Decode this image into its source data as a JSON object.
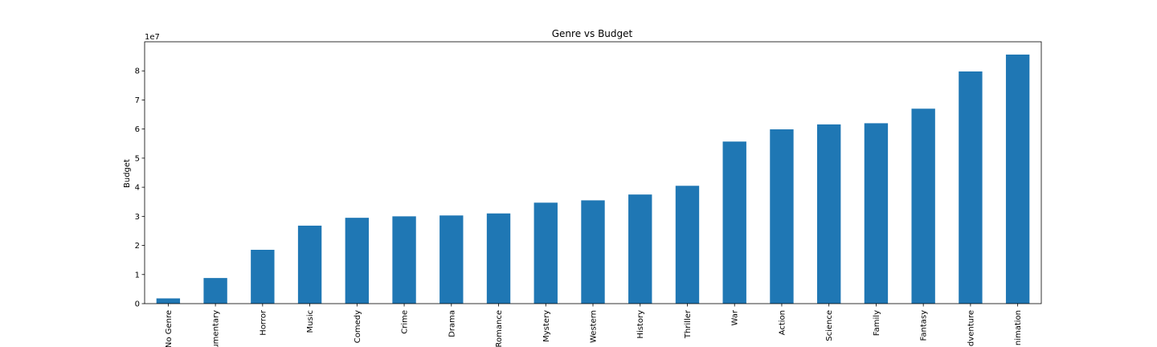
{
  "chart_data": {
    "type": "bar",
    "title": "Genre vs Budget",
    "xlabel": "",
    "ylabel": "Budget",
    "offset_text": "1e7",
    "ylim": [
      0,
      9.0
    ],
    "yticks": [
      0,
      1,
      2,
      3,
      4,
      5,
      6,
      7,
      8
    ],
    "grid": false,
    "color": "#1f77b4",
    "categories": [
      "No Genre",
      "umentary",
      "Horror",
      "Music",
      "Comedy",
      "Crime",
      "Drama",
      "Romance",
      "Mystery",
      "Western",
      "History",
      "Thriller",
      "War",
      "Action",
      "Science",
      "Family",
      "Fantasy",
      "dventure",
      "nimation"
    ],
    "values": [
      0.18,
      0.88,
      1.85,
      2.68,
      2.95,
      3.0,
      3.03,
      3.1,
      3.47,
      3.55,
      3.75,
      4.05,
      5.57,
      5.99,
      6.16,
      6.2,
      6.7,
      7.98,
      8.56
    ]
  }
}
